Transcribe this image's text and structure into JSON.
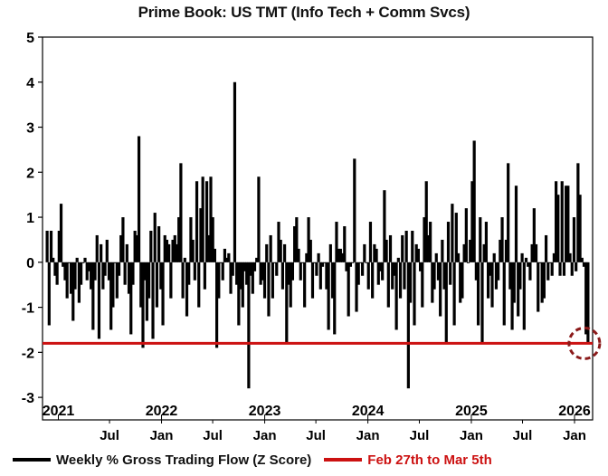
{
  "chart_data": {
    "type": "bar",
    "title": "Prime Book: US TMT (Info Tech + Comm Svcs)",
    "xlabel": "",
    "ylabel": "",
    "ylim": [
      -3.5,
      5
    ],
    "yticks": [
      5,
      4,
      3,
      2,
      1,
      0,
      -1,
      -2,
      -3
    ],
    "year_labels": [
      "2021",
      "2022",
      "2023",
      "2024",
      "2025",
      "2026"
    ],
    "month_labels": [
      "Jul",
      "Jan",
      "Jul",
      "Jan",
      "Jul",
      "Jan",
      "Jul",
      "Jan",
      "Jul",
      "Jan"
    ],
    "x_start": "2020-11-06",
    "x_end": "2026-03-06",
    "series": [
      {
        "name": "Weekly % Gross Trading Flow (Z Score)",
        "color": "#000000",
        "values": [
          0.7,
          -1.4,
          0.7,
          0.1,
          -0.3,
          -0.5,
          0.7,
          1.3,
          -0.1,
          -0.4,
          -0.8,
          0.0,
          -0.7,
          -1.3,
          -0.6,
          0.1,
          -0.9,
          -0.5,
          0.0,
          0.1,
          -0.4,
          -0.2,
          -0.6,
          -1.5,
          -0.4,
          0.6,
          -1.7,
          0.4,
          -0.6,
          -0.3,
          0.5,
          -0.4,
          -1.5,
          -1.0,
          0.0,
          -0.8,
          -0.3,
          0.6,
          1.0,
          -0.5,
          0.4,
          -0.7,
          -1.6,
          -0.5,
          0.7,
          0.6,
          2.8,
          -1.0,
          -1.9,
          -0.4,
          -1.3,
          -0.8,
          0.7,
          -1.7,
          1.1,
          -1.0,
          0.8,
          -0.6,
          -1.4,
          0.6,
          0.5,
          0.4,
          -0.8,
          0.5,
          0.6,
          0.4,
          1.0,
          2.2,
          -0.8,
          0.1,
          -1.2,
          -0.5,
          1.0,
          0.5,
          -0.4,
          1.8,
          -1.0,
          1.2,
          1.9,
          -0.6,
          1.8,
          0.6,
          1.9,
          1.0,
          0.3,
          -1.9,
          -0.8,
          0.0,
          -0.4,
          0.3,
          0.1,
          0.2,
          -0.7,
          -0.3,
          4.0,
          -0.5,
          -1.4,
          -0.6,
          -1.0,
          -0.2,
          -0.5,
          -2.8,
          -0.3,
          -0.7,
          -0.2,
          0.1,
          1.9,
          -0.5,
          -0.4,
          -0.8,
          0.4,
          -1.2,
          0.6,
          -0.8,
          0.0,
          -0.3,
          0.9,
          0.5,
          -0.6,
          0.4,
          -1.8,
          -0.5,
          -1.0,
          -0.4,
          0.8,
          1.0,
          0.3,
          -0.4,
          0.0,
          -1.0,
          0.2,
          1.0,
          0.5,
          -0.8,
          0.0,
          -0.3,
          0.2,
          -0.6,
          -0.1,
          0.0,
          -0.6,
          -1.5,
          0.4,
          -0.8,
          -1.6,
          0.9,
          0.3,
          0.3,
          0.2,
          0.8,
          -0.2,
          -1.2,
          -0.1,
          0.0,
          2.3,
          -1.1,
          -0.5,
          0.0,
          -0.3,
          0.4,
          0.0,
          -0.6,
          0.9,
          -0.8,
          0.4,
          0.3,
          -0.5,
          -0.2,
          -0.4,
          1.6,
          0.5,
          -1.0,
          0.6,
          -0.6,
          -0.3,
          -1.5,
          0.1,
          -0.8,
          0.6,
          -0.6,
          0.7,
          -2.8,
          -0.9,
          0.7,
          -1.4,
          0.4,
          0.3,
          -0.2,
          -1.0,
          1.0,
          1.8,
          0.6,
          0.9,
          -0.9,
          -0.6,
          0.2,
          -0.4,
          -1.2,
          0.5,
          -0.6,
          -1.8,
          0.9,
          -0.5,
          1.3,
          -1.4,
          1.1,
          0.2,
          -0.9,
          -0.8,
          0.4,
          1.2,
          0.0,
          0.5,
          1.8,
          2.7,
          -0.4,
          -1.4,
          1.0,
          -1.8,
          0.4,
          0.9,
          -0.8,
          -0.3,
          -1.0,
          0.2,
          -0.6,
          -0.4,
          0.5,
          1.0,
          -1.4,
          0.5,
          2.2,
          -0.6,
          -1.5,
          -0.9,
          1.7,
          -1.2,
          -0.6,
          0.2,
          -1.5,
          0.1,
          -0.1,
          -0.4,
          0.4,
          1.2,
          0.4,
          -1.1,
          0.0,
          -0.9,
          -0.8,
          0.6,
          -0.4,
          0.0,
          -0.3,
          0.2,
          1.8,
          1.5,
          -0.3,
          1.8,
          -0.3,
          1.7,
          1.7,
          0.2,
          -0.3,
          1.0,
          -0.2,
          2.2,
          1.5,
          0.1,
          -0.1,
          -1.6,
          -1.8
        ]
      },
      {
        "name": "Feb 27th to Mar 5th",
        "color": "#cc1111",
        "value": -1.8
      }
    ],
    "highlight_marker": {
      "value": -1.8,
      "style": "dashed-circle",
      "color": "#8b1a1a"
    },
    "legend": "bottom",
    "grid": false
  }
}
